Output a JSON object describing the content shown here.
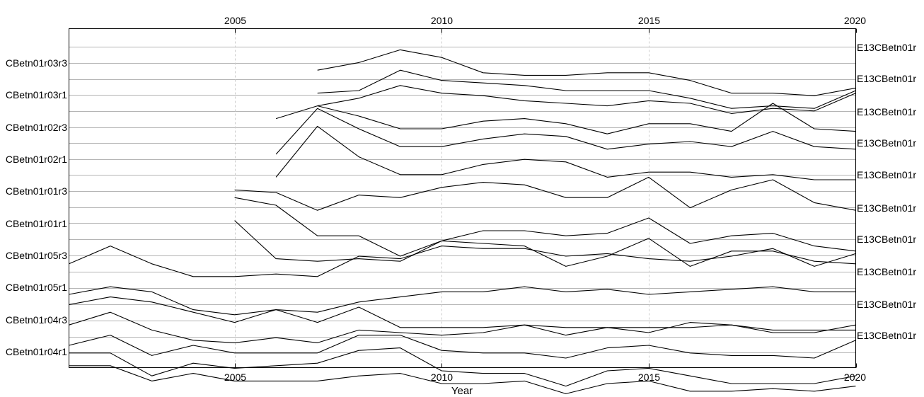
{
  "chart_data": {
    "type": "line",
    "xlabel": "Year",
    "xlim": [
      2001,
      2020
    ],
    "x_ticks": [
      2005,
      2010,
      2015,
      2020
    ],
    "grid": {
      "x": "dashed",
      "y": "solid"
    },
    "series_labels_left": [
      "CBetn01r03r3",
      "CBetn01r03r1",
      "CBetn01r02r3",
      "CBetn01r02r1",
      "CBetn01r01r3",
      "CBetn01r01r1",
      "CBetn01r05r3",
      "CBetn01r05r1",
      "CBetn01r04r3",
      "CBetn01r04r1"
    ],
    "series_labels_right": [
      "E13CBetn01r",
      "E13CBetn01r",
      "E13CBetn01r",
      "E13CBetn01r",
      "E13CBetn01r",
      "E13CBetn01r",
      "E13CBetn01r",
      "E13CBetn01r",
      "E13CBetn01r",
      "E13CBetn01r"
    ],
    "line_color": "#000000",
    "grid_color": "#b4b4b4",
    "series": [
      {
        "x": [
          2007,
          2008,
          2009,
          2010,
          2011,
          2012,
          2013,
          2014,
          2015,
          2016,
          2017,
          2018,
          2019,
          2020
        ],
        "y": [
          53,
          56,
          61,
          58,
          52,
          51,
          51,
          52,
          52,
          49,
          44,
          44,
          43,
          46
        ]
      },
      {
        "x": [
          2007,
          2008,
          2009,
          2010,
          2011,
          2012,
          2013,
          2014,
          2015,
          2016,
          2017,
          2018,
          2019,
          2020
        ],
        "y": [
          44,
          45,
          53,
          49,
          48,
          47,
          45,
          45,
          45,
          42,
          38,
          39,
          38,
          45
        ]
      },
      {
        "x": [
          2007,
          2008,
          2009,
          2010,
          2011,
          2012,
          2013,
          2014,
          2015,
          2016,
          2017,
          2018,
          2019,
          2020
        ],
        "y": [
          39,
          42,
          47,
          44,
          43,
          41,
          40,
          39,
          41,
          40,
          36,
          38,
          37,
          44
        ]
      },
      {
        "x": [
          2006,
          2007,
          2008,
          2009,
          2010,
          2011,
          2012,
          2013,
          2014,
          2015,
          2016,
          2017,
          2018,
          2019,
          2020
        ],
        "y": [
          34,
          39,
          35,
          30,
          30,
          33,
          34,
          32,
          28,
          32,
          32,
          29,
          40,
          30,
          29
        ]
      },
      {
        "x": [
          2006,
          2007,
          2008,
          2009,
          2010,
          2011,
          2012,
          2013,
          2014,
          2015,
          2016,
          2017,
          2018,
          2019,
          2020
        ],
        "y": [
          20,
          38,
          30,
          23,
          23,
          26,
          28,
          27,
          22,
          24,
          25,
          23,
          29,
          23,
          22
        ]
      },
      {
        "x": [
          2006,
          2007,
          2008,
          2009,
          2010,
          2011,
          2012,
          2013,
          2014,
          2015,
          2016,
          2017,
          2018,
          2019,
          2020
        ],
        "y": [
          11,
          31,
          19,
          12,
          12,
          16,
          18,
          17,
          11,
          13,
          13,
          11,
          12,
          10,
          10
        ]
      },
      {
        "x": [
          2005,
          2006,
          2007,
          2008,
          2009,
          2010,
          2011,
          2012,
          2013,
          2014,
          2015,
          2016,
          2017,
          2018,
          2019,
          2020
        ],
        "y": [
          6,
          5,
          -2,
          4,
          3,
          7,
          9,
          8,
          3,
          3,
          11,
          -1,
          6,
          10,
          1,
          -2
        ]
      },
      {
        "x": [
          2005,
          2006,
          2007,
          2008,
          2009,
          2010,
          2011,
          2012,
          2013,
          2014,
          2015,
          2016,
          2017,
          2018,
          2019,
          2020
        ],
        "y": [
          3,
          0,
          -12,
          -12,
          -20,
          -14,
          -10,
          -10,
          -12,
          -11,
          -5,
          -15,
          -12,
          -11,
          -16,
          -18
        ]
      },
      {
        "x": [
          2005,
          2006,
          2007,
          2008,
          2009,
          2010,
          2011,
          2012,
          2013,
          2014,
          2015,
          2016,
          2017,
          2018,
          2019,
          2020
        ],
        "y": [
          -6,
          -21,
          -22,
          -21,
          -22,
          -14,
          -15,
          -16,
          -24,
          -20,
          -13,
          -24,
          -18,
          -18,
          -22,
          -23
        ]
      },
      {
        "x": [
          2001,
          2002,
          2003,
          2004,
          2005,
          2006,
          2007,
          2008,
          2009,
          2010,
          2011,
          2012,
          2013,
          2014,
          2015,
          2016,
          2017,
          2018,
          2019,
          2020
        ],
        "y": [
          -23,
          -16,
          -23,
          -28,
          -28,
          -27,
          -28,
          -20,
          -21,
          -16,
          -17,
          -17,
          -20,
          -19,
          -21,
          -22,
          -20,
          -17,
          -24,
          -19
        ]
      },
      {
        "x": [
          2001,
          2002,
          2003,
          2004,
          2005,
          2006,
          2007,
          2008,
          2009,
          2010,
          2011,
          2012,
          2013,
          2014,
          2015,
          2016,
          2017,
          2018,
          2019,
          2020
        ],
        "y": [
          -35,
          -32,
          -34,
          -41,
          -43,
          -41,
          -42,
          -38,
          -36,
          -34,
          -34,
          -32,
          -34,
          -33,
          -35,
          -34,
          -33,
          -32,
          -34,
          -34
        ]
      },
      {
        "x": [
          2001,
          2002,
          2003,
          2004,
          2005,
          2006,
          2007,
          2008,
          2009,
          2010,
          2011,
          2012,
          2013,
          2014,
          2015,
          2016,
          2017,
          2018,
          2019,
          2020
        ],
        "y": [
          -39,
          -36,
          -38,
          -42,
          -46,
          -41,
          -46,
          -40,
          -48,
          -48,
          -48,
          -47,
          -48,
          -48,
          -48,
          -48,
          -47,
          -49,
          -49,
          -49
        ]
      },
      {
        "x": [
          2001,
          2002,
          2003,
          2004,
          2005,
          2006,
          2007,
          2008,
          2009,
          2010,
          2011,
          2012,
          2013,
          2014,
          2015,
          2016,
          2017,
          2018,
          2019,
          2020
        ],
        "y": [
          -47,
          -42,
          -49,
          -53,
          -54,
          -52,
          -54,
          -49,
          -50,
          -51,
          -50,
          -47,
          -51,
          -48,
          -50,
          -46,
          -47,
          -50,
          -50,
          -47
        ]
      },
      {
        "x": [
          2001,
          2002,
          2003,
          2004,
          2005,
          2006,
          2007,
          2008,
          2009,
          2010,
          2011,
          2012,
          2013,
          2014,
          2015,
          2016,
          2017,
          2018,
          2019,
          2020
        ],
        "y": [
          -55,
          -51,
          -59,
          -55,
          -58,
          -58,
          -58,
          -51,
          -51,
          -57,
          -58,
          -58,
          -60,
          -56,
          -55,
          -58,
          -59,
          -59,
          -60,
          -53
        ]
      },
      {
        "x": [
          2001,
          2002,
          2003,
          2004,
          2005,
          2006,
          2007,
          2008,
          2009,
          2010,
          2011,
          2012,
          2013,
          2014,
          2015,
          2016,
          2017,
          2018,
          2019,
          2020
        ],
        "y": [
          -58,
          -58,
          -67,
          -62,
          -64,
          -63,
          -62,
          -57,
          -56,
          -65,
          -66,
          -66,
          -71,
          -65,
          -64,
          -67,
          -70,
          -70,
          -70,
          -67
        ]
      },
      {
        "x": [
          2001,
          2002,
          2003,
          2004,
          2005,
          2006,
          2007,
          2008,
          2009,
          2010,
          2011,
          2012,
          2013,
          2014,
          2015,
          2016,
          2017,
          2018,
          2019,
          2020
        ],
        "y": [
          -63,
          -63,
          -69,
          -66,
          -69,
          -69,
          -69,
          -67,
          -66,
          -70,
          -70,
          -69,
          -74,
          -70,
          -69,
          -73,
          -73,
          -72,
          -73,
          -71
        ]
      }
    ]
  }
}
